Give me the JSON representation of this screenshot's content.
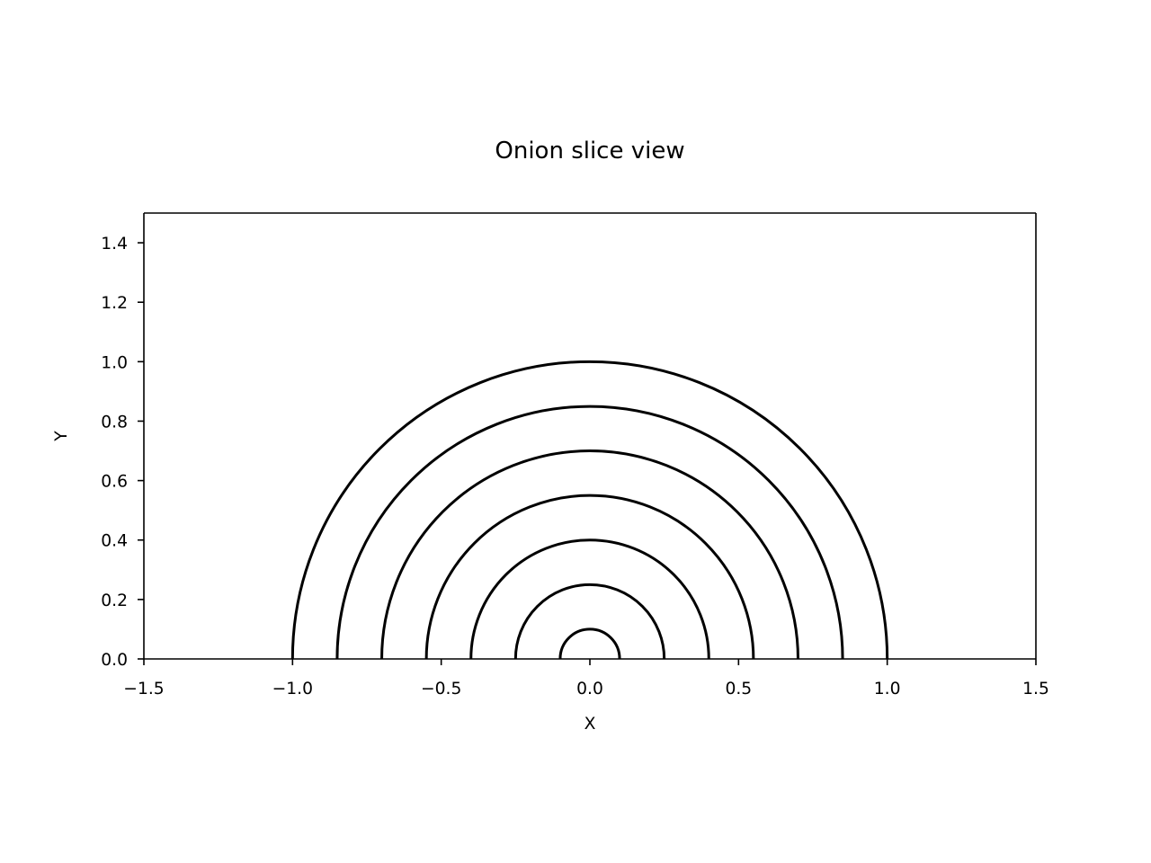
{
  "chart_data": {
    "type": "line",
    "title": "Onion slice view",
    "xlabel": "X",
    "ylabel": "Y",
    "xlim": [
      -1.5,
      1.5
    ],
    "ylim": [
      0.0,
      1.5
    ],
    "xticks": [
      "−1.5",
      "−1.0",
      "−0.5",
      "0.0",
      "0.5",
      "1.0",
      "1.5"
    ],
    "xtick_values": [
      -1.5,
      -1.0,
      -0.5,
      0.0,
      0.5,
      1.0,
      1.5
    ],
    "yticks": [
      "0.0",
      "0.2",
      "0.4",
      "0.6",
      "0.8",
      "1.0",
      "1.2",
      "1.4"
    ],
    "ytick_values": [
      0.0,
      0.2,
      0.4,
      0.6,
      0.8,
      1.0,
      1.2,
      1.4
    ],
    "grid": false,
    "line_color": "#000000",
    "series": [
      {
        "shape": "semicircle",
        "center": [
          0.0,
          0.0
        ],
        "radius": 1.0
      },
      {
        "shape": "semicircle",
        "center": [
          0.0,
          0.0
        ],
        "radius": 0.85
      },
      {
        "shape": "semicircle",
        "center": [
          0.0,
          0.0
        ],
        "radius": 0.7
      },
      {
        "shape": "semicircle",
        "center": [
          0.0,
          0.0
        ],
        "radius": 0.55
      },
      {
        "shape": "semicircle",
        "center": [
          0.0,
          0.0
        ],
        "radius": 0.4
      },
      {
        "shape": "semicircle",
        "center": [
          0.0,
          0.0
        ],
        "radius": 0.25
      },
      {
        "shape": "semicircle",
        "center": [
          0.0,
          0.0
        ],
        "radius": 0.1
      }
    ]
  }
}
